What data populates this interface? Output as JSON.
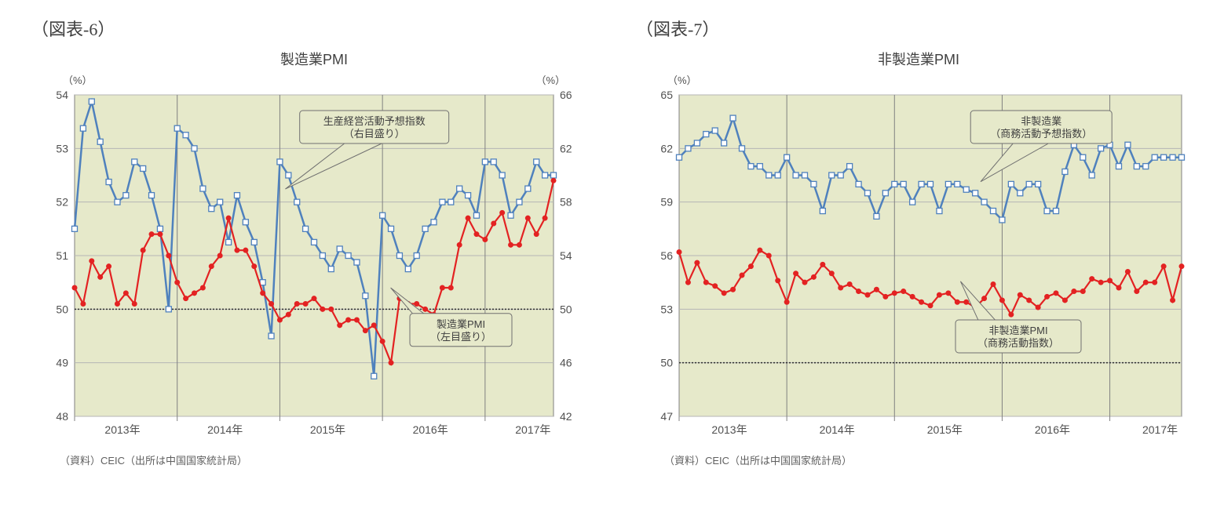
{
  "left": {
    "figure_label": "（図表-6）",
    "title": "製造業PMI",
    "unit_left": "（%）",
    "unit_right": "（%）",
    "source": "（資料）CEIC（出所は中国国家統計局）",
    "type": "dual-axis-line",
    "plot_bg": "#e6e9ca",
    "grid_color": "#b5b5b5",
    "axis_color": "#808080",
    "y_left": {
      "min": 48,
      "max": 54,
      "step": 1
    },
    "y_right": {
      "min": 42,
      "max": 66,
      "step": 4
    },
    "x_labels": [
      "2013年",
      "2014年",
      "2015年",
      "2016年",
      "2017年"
    ],
    "x_count": 57,
    "ref50": {
      "color": "#303030",
      "dash": "2 2"
    },
    "series_blue": {
      "name": "生産経営活動予想指数（右目盛り）",
      "color": "#4f81bd",
      "marker_fill": "#ffffff",
      "marker_shape": "square",
      "marker_size": 7,
      "line_width": 2.5,
      "axis": "right",
      "values": [
        56,
        63.5,
        65.5,
        62.5,
        59.5,
        58,
        58.5,
        61,
        60.5,
        58.5,
        56,
        50,
        63.5,
        63,
        62,
        59,
        57.5,
        58,
        55,
        58.5,
        56.5,
        55,
        52,
        48,
        61,
        60,
        58,
        56,
        55,
        54,
        53,
        54.5,
        54,
        53.5,
        51,
        45,
        57,
        56,
        54,
        53,
        54,
        56,
        56.5,
        58,
        58,
        59,
        58.5,
        57,
        61,
        61,
        60,
        57,
        58,
        59,
        61,
        60,
        60
      ]
    },
    "series_red": {
      "name": "製造業PMI（左目盛り）",
      "color": "#e32222",
      "marker_fill": "#e32222",
      "marker_shape": "circle",
      "marker_size": 6,
      "line_width": 2.2,
      "axis": "left",
      "values": [
        50.4,
        50.1,
        50.9,
        50.6,
        50.8,
        50.1,
        50.3,
        50.1,
        51.1,
        51.4,
        51.4,
        51,
        50.5,
        50.2,
        50.3,
        50.4,
        50.8,
        51,
        51.7,
        51.1,
        51.1,
        50.8,
        50.3,
        50.1,
        49.8,
        49.9,
        50.1,
        50.1,
        50.2,
        50.0,
        50.0,
        49.7,
        49.8,
        49.8,
        49.6,
        49.7,
        49.4,
        49,
        50.2,
        50.1,
        50.1,
        50,
        49.9,
        50.4,
        50.4,
        51.2,
        51.7,
        51.4,
        51.3,
        51.6,
        51.8,
        51.2,
        51.2,
        51.7,
        51.4,
        51.7,
        52.4
      ]
    },
    "callout_blue": {
      "text_l1": "生産経営活動予想指数",
      "text_l2": "（右目盛り）"
    },
    "callout_red": {
      "text_l1": "製造業PMI",
      "text_l2": "（左目盛り）"
    }
  },
  "right": {
    "figure_label": "（図表-7）",
    "title": "非製造業PMI",
    "unit_left": "（%）",
    "unit_right": "",
    "source": "（資料）CEIC（出所は中国国家統計局）",
    "type": "single-axis-line",
    "plot_bg": "#e6e9ca",
    "grid_color": "#b5b5b5",
    "axis_color": "#808080",
    "y_left": {
      "min": 47,
      "max": 65,
      "step": 3
    },
    "x_labels": [
      "2013年",
      "2014年",
      "2015年",
      "2016年",
      "2017年"
    ],
    "x_count": 57,
    "ref50": {
      "color": "#303030",
      "dash": "2 2"
    },
    "series_blue": {
      "name": "非製造業（商務活動予想指数）",
      "color": "#4f81bd",
      "marker_fill": "#ffffff",
      "marker_shape": "square",
      "marker_size": 7,
      "line_width": 2.5,
      "values": [
        61.5,
        62,
        62.3,
        62.8,
        63,
        62.3,
        63.7,
        62,
        61,
        61,
        60.5,
        60.5,
        61.5,
        60.5,
        60.5,
        60,
        58.5,
        60.5,
        60.5,
        61,
        60,
        59.5,
        58.2,
        59.5,
        60,
        60,
        59,
        60,
        60,
        58.5,
        60,
        60,
        59.7,
        59.5,
        59,
        58.5,
        58,
        60,
        59.5,
        60,
        60,
        58.5,
        58.5,
        60.7,
        62.2,
        61.5,
        60.5,
        62,
        62.2,
        61,
        62.2,
        61,
        61,
        61.5,
        61.5,
        61.5,
        61.5
      ]
    },
    "series_red": {
      "name": "非製造業PMI（商務活動指数）",
      "color": "#e32222",
      "marker_fill": "#e32222",
      "marker_shape": "circle",
      "marker_size": 6,
      "line_width": 2.2,
      "values": [
        56.2,
        54.5,
        55.6,
        54.5,
        54.3,
        53.9,
        54.1,
        54.9,
        55.4,
        56.3,
        56,
        54.6,
        53.4,
        55,
        54.5,
        54.8,
        55.5,
        55,
        54.2,
        54.4,
        54,
        53.8,
        54.1,
        53.7,
        53.9,
        54,
        53.7,
        53.4,
        53.2,
        53.8,
        53.9,
        53.4,
        53.4,
        53.1,
        53.6,
        54.4,
        53.5,
        52.7,
        53.8,
        53.5,
        53.1,
        53.7,
        53.9,
        53.5,
        54,
        54,
        54.7,
        54.5,
        54.6,
        54.2,
        55.1,
        54,
        54.5,
        54.5,
        55.4,
        53.5,
        55.4
      ]
    },
    "callout_blue": {
      "text_l1": "非製造業",
      "text_l2": "（商務活動予想指数）"
    },
    "callout_red": {
      "text_l1": "非製造業PMI",
      "text_l2": "（商務活動指数）"
    }
  },
  "colors": {
    "text": "#404040",
    "callout_fill": "#e6e9ca",
    "callout_stroke": "#707070"
  },
  "fonts": {
    "title_size": 18,
    "axis_size": 14,
    "callout_size": 13
  }
}
